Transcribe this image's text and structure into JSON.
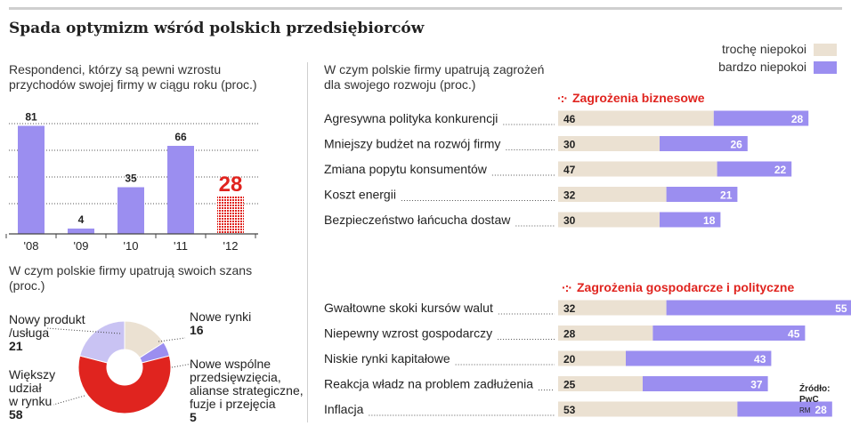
{
  "title": "Spada optymizm wśród polskich przedsiębiorców",
  "legend": [
    {
      "label": "trochę niepokoi",
      "color": "#ebe1d2"
    },
    {
      "label": "bardzo niepokoi",
      "color": "#9b8ef0"
    }
  ],
  "source": {
    "line1": "Źródło:",
    "line2": "PwC",
    "line3": "RM"
  },
  "chart_data": [
    {
      "type": "bar",
      "title": "Respondenci, którzy są pewni wzrostu przychodów swojej firmy w ciągu roku (proc.)",
      "title_lines": [
        "Respondenci, którzy są pewni wzrostu",
        "przychodów swojej firmy w ciągu roku (proc.)"
      ],
      "categories": [
        "'08",
        "'09",
        "'10",
        "'11",
        "'12"
      ],
      "values": [
        81,
        4,
        35,
        66,
        28
      ],
      "highlight_index": 4,
      "colors": {
        "normal": "#9b8ef0",
        "highlight": "#e0241f"
      },
      "ylim": [
        0,
        90
      ],
      "grid": true
    },
    {
      "type": "pie",
      "title": "W czym polskie firmy upatrują swoich szans (proc.)",
      "title_lines": [
        "W czym polskie firmy upatrują swoich szans",
        "(proc.)"
      ],
      "slices": [
        {
          "label_lines": [
            "Nowe rynki"
          ],
          "value": 16,
          "color": "#ebe1d2"
        },
        {
          "label_lines": [
            "Nowe wspólne",
            "przedsięwzięcia,",
            "alianse strategiczne,",
            "fuzje i przejęcia"
          ],
          "value": 5,
          "color": "#9b8ef0"
        },
        {
          "label_lines": [
            "Większy",
            "udział",
            "w rynku"
          ],
          "value": 58,
          "color": "#e0241f"
        },
        {
          "label_lines": [
            "Nowy produkt",
            "/usługa"
          ],
          "value": 21,
          "color": "#c9c3f3"
        }
      ]
    },
    {
      "type": "bar",
      "orientation": "horizontal-stacked",
      "title": "W czym polskie firmy upatrują zagrożeń dla swojego rozwoju (proc.)",
      "title_lines": [
        "W czym polskie firmy upatrują zagrożeń",
        "dla swojego rozwoju (proc.)"
      ],
      "series_names": [
        "trochę niepokoi",
        "bardzo niepokoi"
      ],
      "groups": [
        {
          "name": "Zagrożenia biznesowe",
          "rows": [
            {
              "label": "Agresywna polityka konkurencji",
              "values": [
                46,
                28
              ]
            },
            {
              "label": "Mniejszy budżet na rozwój firmy",
              "values": [
                30,
                26
              ]
            },
            {
              "label": "Zmiana popytu konsumentów",
              "values": [
                47,
                22
              ]
            },
            {
              "label": "Koszt energii",
              "values": [
                32,
                21
              ]
            },
            {
              "label": "Bezpieczeństwo łańcucha dostaw",
              "values": [
                30,
                18
              ]
            }
          ]
        },
        {
          "name": "Zagrożenia gospodarcze i polityczne",
          "rows": [
            {
              "label": "Gwałtowne skoki kursów walut",
              "values": [
                32,
                55
              ]
            },
            {
              "label": "Niepewny wzrost gospodarczy",
              "values": [
                28,
                45
              ]
            },
            {
              "label": "Niskie rynki kapitałowe",
              "values": [
                20,
                43
              ]
            },
            {
              "label": "Reakcja władz na problem zadłużenia",
              "values": [
                25,
                37
              ]
            },
            {
              "label": "Inflacja",
              "values": [
                53,
                28
              ]
            }
          ]
        }
      ]
    }
  ]
}
